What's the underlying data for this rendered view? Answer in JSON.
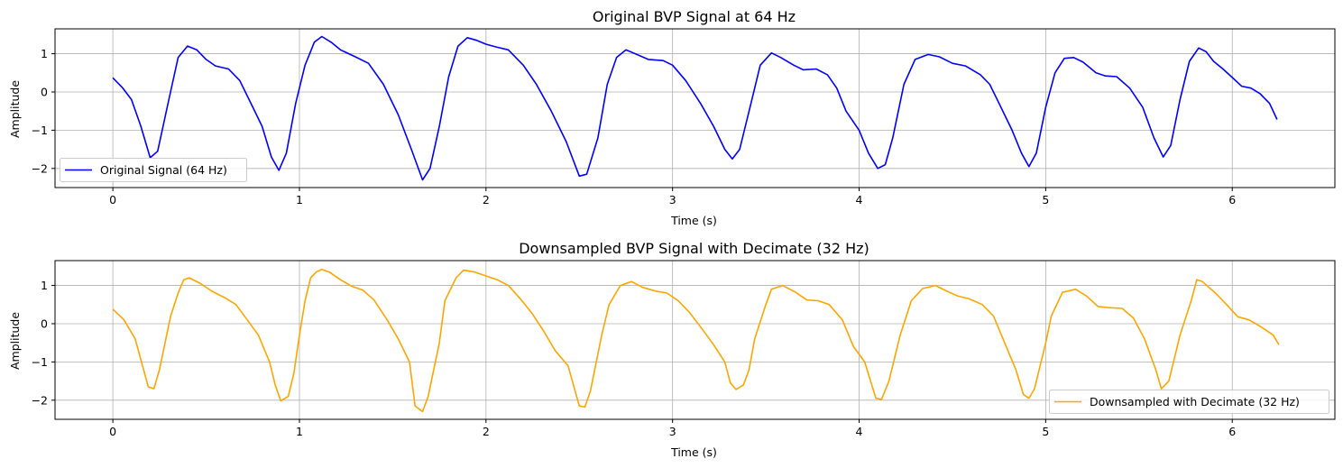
{
  "chart_data": [
    {
      "type": "line",
      "title": "Original BVP Signal at 64 Hz",
      "xlabel": "Time (s)",
      "ylabel": "Amplitude",
      "xlim": [
        -0.31,
        6.55
      ],
      "ylim": [
        -2.5,
        1.65
      ],
      "xticks": [
        0,
        1,
        2,
        3,
        4,
        5,
        6
      ],
      "yticks": [
        -2,
        -1,
        0,
        1
      ],
      "grid": true,
      "legend": "lower left",
      "series": [
        {
          "name": "Original Signal (64 Hz)",
          "color": "#0000ff",
          "sample_rate_hz": 64,
          "points": [
            [
              0,
              0.37
            ],
            [
              0.05,
              0.12
            ],
            [
              0.1,
              -0.2
            ],
            [
              0.15,
              -0.9
            ],
            [
              0.2,
              -1.72
            ],
            [
              0.24,
              -1.55
            ],
            [
              0.3,
              -0.2
            ],
            [
              0.35,
              0.9
            ],
            [
              0.4,
              1.2
            ],
            [
              0.45,
              1.1
            ],
            [
              0.5,
              0.85
            ],
            [
              0.55,
              0.68
            ],
            [
              0.62,
              0.6
            ],
            [
              0.68,
              0.3
            ],
            [
              0.75,
              -0.4
            ],
            [
              0.8,
              -0.9
            ],
            [
              0.85,
              -1.7
            ],
            [
              0.89,
              -2.05
            ],
            [
              0.93,
              -1.6
            ],
            [
              0.98,
              -0.3
            ],
            [
              1.03,
              0.7
            ],
            [
              1.08,
              1.3
            ],
            [
              1.12,
              1.45
            ],
            [
              1.17,
              1.3
            ],
            [
              1.22,
              1.1
            ],
            [
              1.3,
              0.92
            ],
            [
              1.37,
              0.75
            ],
            [
              1.45,
              0.2
            ],
            [
              1.53,
              -0.6
            ],
            [
              1.6,
              -1.5
            ],
            [
              1.66,
              -2.3
            ],
            [
              1.7,
              -2.0
            ],
            [
              1.75,
              -0.9
            ],
            [
              1.8,
              0.4
            ],
            [
              1.85,
              1.2
            ],
            [
              1.9,
              1.42
            ],
            [
              1.95,
              1.35
            ],
            [
              2.0,
              1.25
            ],
            [
              2.05,
              1.18
            ],
            [
              2.12,
              1.1
            ],
            [
              2.2,
              0.7
            ],
            [
              2.27,
              0.2
            ],
            [
              2.35,
              -0.5
            ],
            [
              2.43,
              -1.3
            ],
            [
              2.5,
              -2.2
            ],
            [
              2.54,
              -2.15
            ],
            [
              2.6,
              -1.2
            ],
            [
              2.65,
              0.2
            ],
            [
              2.7,
              0.9
            ],
            [
              2.75,
              1.1
            ],
            [
              2.8,
              1.0
            ],
            [
              2.87,
              0.85
            ],
            [
              2.95,
              0.82
            ],
            [
              3.0,
              0.7
            ],
            [
              3.07,
              0.3
            ],
            [
              3.15,
              -0.3
            ],
            [
              3.22,
              -0.9
            ],
            [
              3.28,
              -1.5
            ],
            [
              3.32,
              -1.75
            ],
            [
              3.36,
              -1.5
            ],
            [
              3.42,
              -0.3
            ],
            [
              3.47,
              0.7
            ],
            [
              3.53,
              1.02
            ],
            [
              3.58,
              0.9
            ],
            [
              3.65,
              0.7
            ],
            [
              3.7,
              0.58
            ],
            [
              3.77,
              0.6
            ],
            [
              3.83,
              0.45
            ],
            [
              3.88,
              0.1
            ],
            [
              3.93,
              -0.5
            ],
            [
              4.0,
              -1.0
            ],
            [
              4.05,
              -1.6
            ],
            [
              4.1,
              -2.0
            ],
            [
              4.14,
              -1.9
            ],
            [
              4.18,
              -1.2
            ],
            [
              4.24,
              0.2
            ],
            [
              4.3,
              0.85
            ],
            [
              4.37,
              0.98
            ],
            [
              4.43,
              0.92
            ],
            [
              4.5,
              0.75
            ],
            [
              4.57,
              0.68
            ],
            [
              4.65,
              0.45
            ],
            [
              4.7,
              0.2
            ],
            [
              4.75,
              -0.3
            ],
            [
              4.82,
              -1.0
            ],
            [
              4.87,
              -1.6
            ],
            [
              4.91,
              -1.95
            ],
            [
              4.95,
              -1.6
            ],
            [
              5.0,
              -0.4
            ],
            [
              5.05,
              0.5
            ],
            [
              5.1,
              0.88
            ],
            [
              5.15,
              0.9
            ],
            [
              5.2,
              0.78
            ],
            [
              5.27,
              0.5
            ],
            [
              5.32,
              0.42
            ],
            [
              5.38,
              0.4
            ],
            [
              5.45,
              0.1
            ],
            [
              5.52,
              -0.4
            ],
            [
              5.58,
              -1.2
            ],
            [
              5.63,
              -1.7
            ],
            [
              5.67,
              -1.4
            ],
            [
              5.72,
              -0.2
            ],
            [
              5.77,
              0.8
            ],
            [
              5.82,
              1.15
            ],
            [
              5.86,
              1.05
            ],
            [
              5.9,
              0.8
            ],
            [
              5.95,
              0.6
            ],
            [
              6.0,
              0.38
            ],
            [
              6.05,
              0.15
            ],
            [
              6.1,
              0.1
            ],
            [
              6.15,
              -0.05
            ],
            [
              6.2,
              -0.3
            ],
            [
              6.24,
              -0.72
            ]
          ]
        }
      ]
    },
    {
      "type": "line",
      "title": "Downsampled BVP Signal with Decimate (32 Hz)",
      "xlabel": "Time (s)",
      "ylabel": "Amplitude",
      "xlim": [
        -0.31,
        6.55
      ],
      "ylim": [
        -2.5,
        1.65
      ],
      "xticks": [
        0,
        1,
        2,
        3,
        4,
        5,
        6
      ],
      "yticks": [
        -2,
        -1,
        0,
        1
      ],
      "grid": true,
      "legend": "lower right",
      "series": [
        {
          "name": "Downsampled with Decimate (32 Hz)",
          "color": "#ffa500",
          "sample_rate_hz": 32,
          "points": [
            [
              0,
              0.38
            ],
            [
              0.06,
              0.1
            ],
            [
              0.12,
              -0.4
            ],
            [
              0.19,
              -1.65
            ],
            [
              0.22,
              -1.7
            ],
            [
              0.25,
              -1.2
            ],
            [
              0.31,
              0.2
            ],
            [
              0.35,
              0.8
            ],
            [
              0.38,
              1.15
            ],
            [
              0.41,
              1.2
            ],
            [
              0.47,
              1.05
            ],
            [
              0.53,
              0.85
            ],
            [
              0.6,
              0.68
            ],
            [
              0.66,
              0.5
            ],
            [
              0.72,
              0.1
            ],
            [
              0.78,
              -0.3
            ],
            [
              0.84,
              -1.0
            ],
            [
              0.87,
              -1.6
            ],
            [
              0.9,
              -2.02
            ],
            [
              0.94,
              -1.9
            ],
            [
              0.97,
              -1.3
            ],
            [
              1.0,
              -0.3
            ],
            [
              1.03,
              0.6
            ],
            [
              1.06,
              1.2
            ],
            [
              1.09,
              1.35
            ],
            [
              1.12,
              1.42
            ],
            [
              1.16,
              1.35
            ],
            [
              1.22,
              1.15
            ],
            [
              1.28,
              0.98
            ],
            [
              1.34,
              0.88
            ],
            [
              1.4,
              0.62
            ],
            [
              1.47,
              0.1
            ],
            [
              1.53,
              -0.4
            ],
            [
              1.59,
              -1.0
            ],
            [
              1.62,
              -2.15
            ],
            [
              1.66,
              -2.3
            ],
            [
              1.69,
              -1.9
            ],
            [
              1.75,
              -0.5
            ],
            [
              1.78,
              0.6
            ],
            [
              1.84,
              1.2
            ],
            [
              1.88,
              1.4
            ],
            [
              1.94,
              1.35
            ],
            [
              2.0,
              1.25
            ],
            [
              2.06,
              1.15
            ],
            [
              2.12,
              1.0
            ],
            [
              2.19,
              0.62
            ],
            [
              2.25,
              0.25
            ],
            [
              2.31,
              -0.2
            ],
            [
              2.37,
              -0.7
            ],
            [
              2.44,
              -1.1
            ],
            [
              2.5,
              -2.15
            ],
            [
              2.53,
              -2.18
            ],
            [
              2.56,
              -1.75
            ],
            [
              2.62,
              -0.3
            ],
            [
              2.66,
              0.5
            ],
            [
              2.72,
              1.0
            ],
            [
              2.78,
              1.1
            ],
            [
              2.84,
              0.95
            ],
            [
              2.91,
              0.85
            ],
            [
              2.97,
              0.8
            ],
            [
              3.03,
              0.6
            ],
            [
              3.09,
              0.3
            ],
            [
              3.16,
              -0.15
            ],
            [
              3.22,
              -0.55
            ],
            [
              3.28,
              -1.0
            ],
            [
              3.31,
              -1.55
            ],
            [
              3.34,
              -1.72
            ],
            [
              3.38,
              -1.6
            ],
            [
              3.41,
              -1.2
            ],
            [
              3.44,
              -0.4
            ],
            [
              3.5,
              0.5
            ],
            [
              3.53,
              0.9
            ],
            [
              3.59,
              1.0
            ],
            [
              3.66,
              0.82
            ],
            [
              3.72,
              0.62
            ],
            [
              3.78,
              0.6
            ],
            [
              3.84,
              0.5
            ],
            [
              3.91,
              0.1
            ],
            [
              3.97,
              -0.6
            ],
            [
              4.03,
              -1.0
            ],
            [
              4.09,
              -1.95
            ],
            [
              4.12,
              -1.98
            ],
            [
              4.16,
              -1.5
            ],
            [
              4.22,
              -0.3
            ],
            [
              4.28,
              0.6
            ],
            [
              4.34,
              0.92
            ],
            [
              4.41,
              1.0
            ],
            [
              4.47,
              0.85
            ],
            [
              4.53,
              0.72
            ],
            [
              4.59,
              0.65
            ],
            [
              4.66,
              0.5
            ],
            [
              4.72,
              0.2
            ],
            [
              4.78,
              -0.5
            ],
            [
              4.84,
              -1.2
            ],
            [
              4.88,
              -1.85
            ],
            [
              4.91,
              -1.95
            ],
            [
              4.94,
              -1.7
            ],
            [
              5.0,
              -0.5
            ],
            [
              5.03,
              0.2
            ],
            [
              5.09,
              0.82
            ],
            [
              5.16,
              0.9
            ],
            [
              5.22,
              0.72
            ],
            [
              5.28,
              0.45
            ],
            [
              5.34,
              0.42
            ],
            [
              5.41,
              0.4
            ],
            [
              5.47,
              0.15
            ],
            [
              5.53,
              -0.4
            ],
            [
              5.59,
              -1.2
            ],
            [
              5.62,
              -1.7
            ],
            [
              5.66,
              -1.5
            ],
            [
              5.72,
              -0.3
            ],
            [
              5.78,
              0.6
            ],
            [
              5.81,
              1.15
            ],
            [
              5.84,
              1.1
            ],
            [
              5.91,
              0.8
            ],
            [
              5.97,
              0.5
            ],
            [
              6.03,
              0.18
            ],
            [
              6.09,
              0.1
            ],
            [
              6.16,
              -0.1
            ],
            [
              6.22,
              -0.3
            ],
            [
              6.25,
              -0.55
            ]
          ]
        }
      ]
    }
  ]
}
